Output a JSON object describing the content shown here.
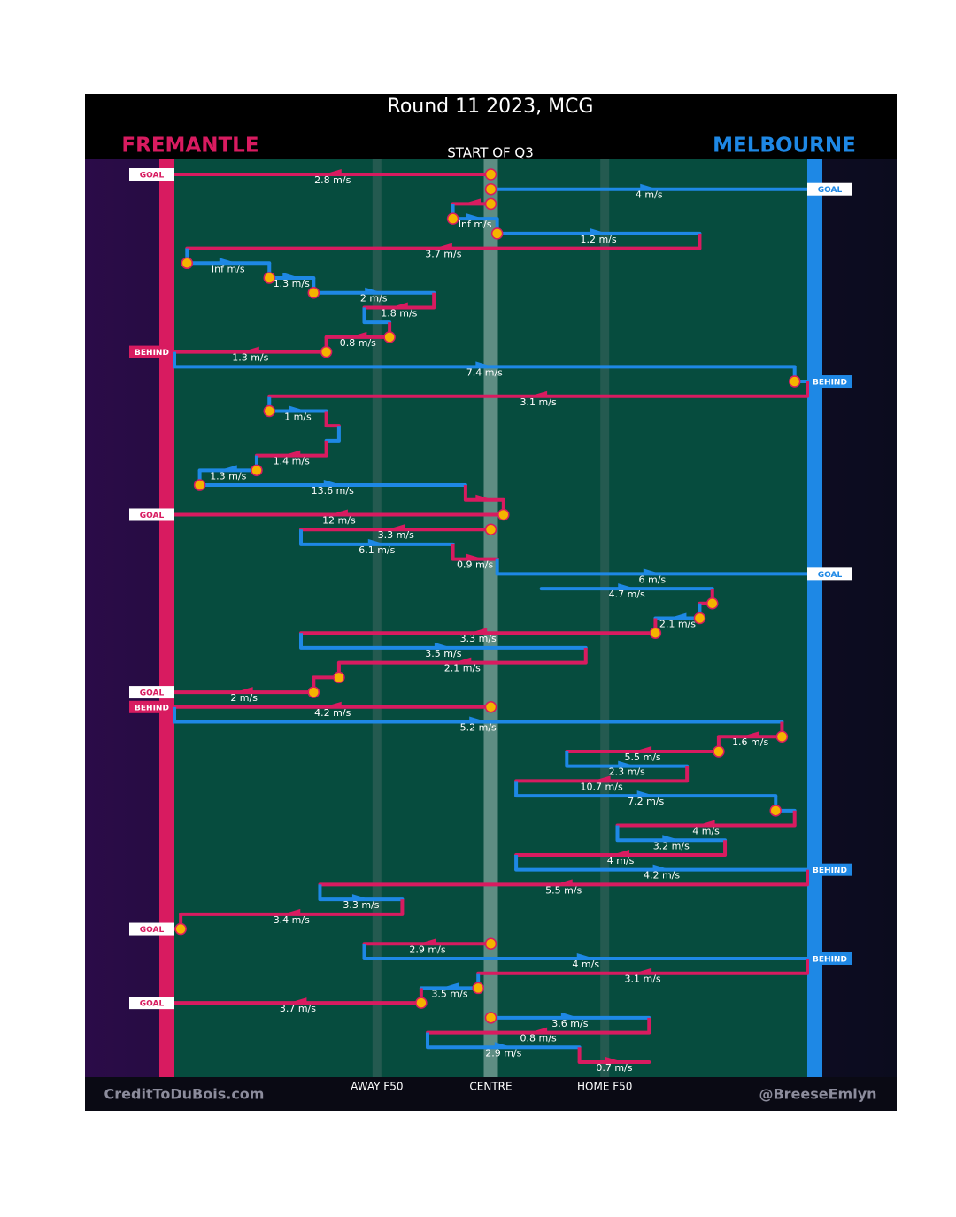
{
  "chart_data": {
    "type": "possession-chain",
    "title": "Round 11 2023, MCG",
    "subtitle": "START OF Q3",
    "teams": [
      {
        "name": "FREMANTLE",
        "color": "#d81b60"
      },
      {
        "name": "MELBOURNE",
        "color": "#1e88e5"
      }
    ],
    "xlim": [
      0,
      100
    ],
    "xticks": [
      {
        "value": 32,
        "label": "AWAY F50"
      },
      {
        "value": 50,
        "label": "CENTRE"
      },
      {
        "value": 68,
        "label": "HOME F50"
      }
    ],
    "credits": [
      "CreditToDuBois.com",
      "@BreeseEmlyn"
    ],
    "chain": [
      {
        "team": 0,
        "from": 50,
        "to": 0,
        "speed": "2.8 m/s",
        "result": "GOAL",
        "marker": true
      },
      {
        "team": 1,
        "from": 50,
        "to": 100,
        "speed": "4 m/s",
        "result": "GOAL",
        "marker": true
      },
      {
        "team": 0,
        "from": 50,
        "to": 44,
        "marker": true
      },
      {
        "team": 1,
        "from": 44,
        "to": 51,
        "speed": "Inf m/s",
        "marker": true
      },
      {
        "team": 1,
        "from": 51,
        "to": 83,
        "speed": "1.2 m/s",
        "marker": true
      },
      {
        "team": 0,
        "from": 83,
        "to": 2,
        "speed": "3.7 m/s"
      },
      {
        "team": 1,
        "from": 2,
        "to": 15,
        "speed": "Inf m/s",
        "marker": true
      },
      {
        "team": 1,
        "from": 15,
        "to": 22,
        "speed": "1.3 m/s",
        "marker": true
      },
      {
        "team": 1,
        "from": 22,
        "to": 41,
        "speed": "2 m/s",
        "marker": true
      },
      {
        "team": 0,
        "from": 41,
        "to": 30,
        "speed": "1.8 m/s"
      },
      {
        "team": 1,
        "from": 30,
        "to": 34
      },
      {
        "team": 0,
        "from": 34,
        "to": 24,
        "speed": "0.8 m/s",
        "marker": true
      },
      {
        "team": 0,
        "from": 24,
        "to": 0,
        "speed": "1.3 m/s",
        "result": "BEHIND",
        "marker": true
      },
      {
        "team": 1,
        "from": 0,
        "to": 98,
        "speed": "7.4 m/s"
      },
      {
        "team": 1,
        "from": 98,
        "to": 100,
        "result": "BEHIND",
        "marker": true
      },
      {
        "team": 0,
        "from": 100,
        "to": 15,
        "speed": "3.1 m/s"
      },
      {
        "team": 1,
        "from": 15,
        "to": 24,
        "speed": "1 m/s",
        "marker": true
      },
      {
        "team": 0,
        "from": 24,
        "to": 26
      },
      {
        "team": 1,
        "from": 26,
        "to": 24
      },
      {
        "team": 0,
        "from": 24,
        "to": 13,
        "speed": "1.4 m/s"
      },
      {
        "team": 1,
        "from": 13,
        "to": 4,
        "speed": "1.3 m/s",
        "marker": true
      },
      {
        "team": 1,
        "from": 4,
        "to": 46,
        "speed": "13.6 m/s",
        "marker": true
      },
      {
        "team": 0,
        "from": 46,
        "to": 52
      },
      {
        "team": 0,
        "from": 52,
        "to": 0,
        "speed": "12 m/s",
        "result": "GOAL",
        "marker": true
      },
      {
        "team": 0,
        "from": 50,
        "to": 20,
        "speed": "3.3 m/s",
        "marker": true
      },
      {
        "team": 1,
        "from": 20,
        "to": 44,
        "speed": "6.1 m/s"
      },
      {
        "team": 0,
        "from": 44,
        "to": 51,
        "speed": "0.9 m/s"
      },
      {
        "team": 1,
        "from": 51,
        "to": 100,
        "speed": "6 m/s",
        "result": "GOAL"
      },
      {
        "team": 1,
        "from": 58,
        "to": 85,
        "speed": "4.7 m/s"
      },
      {
        "team": 0,
        "from": 85,
        "to": 83,
        "marker": true
      },
      {
        "team": 1,
        "from": 83,
        "to": 76,
        "speed": "2.1 m/s",
        "marker": true
      },
      {
        "team": 0,
        "from": 76,
        "to": 20,
        "speed": "3.3 m/s",
        "marker": true
      },
      {
        "team": 1,
        "from": 20,
        "to": 65,
        "speed": "3.5 m/s"
      },
      {
        "team": 0,
        "from": 65,
        "to": 26,
        "speed": "2.1 m/s"
      },
      {
        "team": 0,
        "from": 26,
        "to": 22,
        "marker": true
      },
      {
        "team": 0,
        "from": 22,
        "to": 0,
        "speed": "2 m/s",
        "result": "GOAL",
        "marker": true
      },
      {
        "team": 0,
        "from": 50,
        "to": 0,
        "speed": "4.2 m/s",
        "result": "BEHIND",
        "marker": true
      },
      {
        "team": 1,
        "from": 0,
        "to": 96,
        "speed": "5.2 m/s"
      },
      {
        "team": 0,
        "from": 96,
        "to": 86,
        "speed": "1.6 m/s",
        "marker": true
      },
      {
        "team": 0,
        "from": 86,
        "to": 62,
        "speed": "5.5 m/s",
        "marker": true
      },
      {
        "team": 1,
        "from": 62,
        "to": 81,
        "speed": "2.3 m/s"
      },
      {
        "team": 0,
        "from": 81,
        "to": 54,
        "speed": "10.7 m/s"
      },
      {
        "team": 1,
        "from": 54,
        "to": 95,
        "speed": "7.2 m/s"
      },
      {
        "team": 1,
        "from": 95,
        "to": 98,
        "marker": true
      },
      {
        "team": 0,
        "from": 98,
        "to": 70,
        "speed": "4 m/s"
      },
      {
        "team": 1,
        "from": 70,
        "to": 87,
        "speed": "3.2 m/s"
      },
      {
        "team": 0,
        "from": 87,
        "to": 54,
        "speed": "4 m/s"
      },
      {
        "team": 1,
        "from": 54,
        "to": 100,
        "speed": "4.2 m/s",
        "result": "BEHIND"
      },
      {
        "team": 0,
        "from": 100,
        "to": 23,
        "speed": "5.5 m/s"
      },
      {
        "team": 1,
        "from": 23,
        "to": 36,
        "speed": "3.3 m/s"
      },
      {
        "team": 0,
        "from": 36,
        "to": 1,
        "speed": "3.4 m/s"
      },
      {
        "team": 0,
        "from": 1,
        "to": 0,
        "result": "GOAL",
        "marker": true
      },
      {
        "team": 0,
        "from": 50,
        "to": 30,
        "speed": "2.9 m/s",
        "marker": true
      },
      {
        "team": 1,
        "from": 30,
        "to": 100,
        "speed": "4 m/s",
        "result": "BEHIND"
      },
      {
        "team": 0,
        "from": 100,
        "to": 48,
        "speed": "3.1 m/s"
      },
      {
        "team": 1,
        "from": 48,
        "to": 39,
        "speed": "3.5 m/s",
        "marker": true
      },
      {
        "team": 0,
        "from": 39,
        "to": 0,
        "speed": "3.7 m/s",
        "result": "GOAL",
        "marker": true
      },
      {
        "team": 1,
        "from": 50,
        "to": 75,
        "speed": "3.6 m/s",
        "marker": true
      },
      {
        "team": 0,
        "from": 75,
        "to": 40,
        "speed": "0.8 m/s"
      },
      {
        "team": 1,
        "from": 40,
        "to": 64,
        "speed": "2.9 m/s"
      },
      {
        "team": 0,
        "from": 64,
        "to": 75,
        "speed": "0.7 m/s"
      }
    ]
  }
}
